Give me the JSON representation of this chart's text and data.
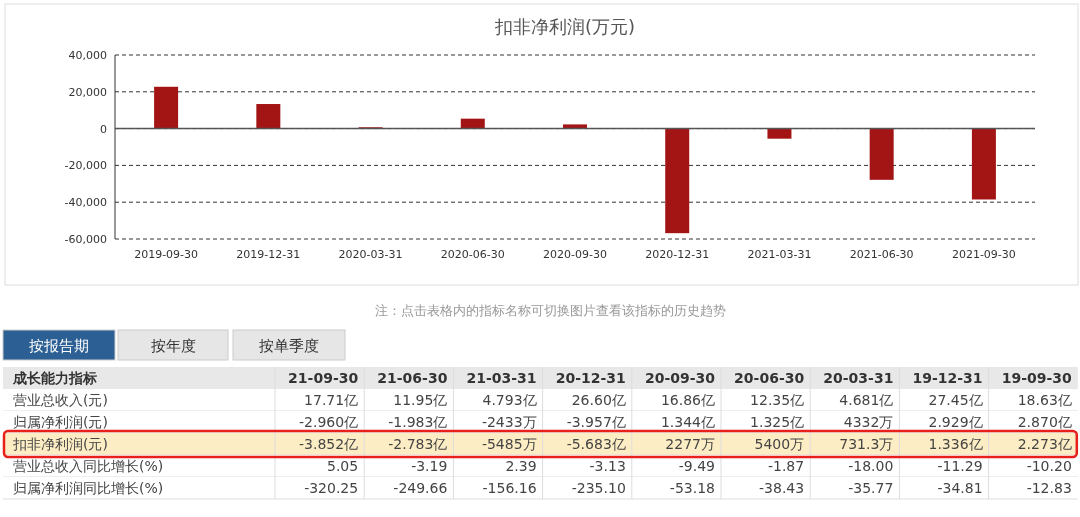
{
  "chart_data": [
    {
      "type": "bar",
      "title": "扣非净利润(万元)",
      "categories": [
        "2019-09-30",
        "2019-12-31",
        "2020-03-31",
        "2020-06-30",
        "2020-09-30",
        "2020-12-31",
        "2021-03-31",
        "2021-06-30",
        "2021-09-30"
      ],
      "values": [
        22730,
        13360,
        731.3,
        5400,
        2277,
        -56830,
        -5485,
        -27830,
        -38520
      ],
      "color": "#a31515",
      "ylim": [
        -60000,
        40000
      ],
      "yticks": [
        {
          "value": -60000,
          "label": "-60,000"
        },
        {
          "value": -40000,
          "label": "-40,000"
        },
        {
          "value": -20000,
          "label": "-20,000"
        },
        0,
        {
          "value": 20000,
          "label": "20,000"
        },
        {
          "value": 40000,
          "label": "40,000"
        }
      ],
      "grid": "y",
      "annotations": [
        "注：点击表格内的指标名称可切换图片查看该指标的历史趋势"
      ]
    },
    {
      "type": "other",
      "categories": [
        "成长能力指标",
        "21-09-30",
        "21-06-30",
        "21-03-31",
        "20-12-31",
        "20-09-30",
        "20-06-30",
        "20-03-31",
        "19-12-31",
        "19-09-30"
      ],
      "y_categories": [
        "营业总收入(元)",
        "归属净利润(元)",
        "扣非净利润(元)",
        "营业总收入同比增长(%)",
        "归属净利润同比增长(%)"
      ],
      "cell_labels": [
        [
          "17.71亿",
          "11.95亿",
          "4.793亿",
          "26.60亿",
          "16.86亿",
          "12.35亿",
          "4.681亿",
          "27.45亿",
          "18.63亿"
        ],
        [
          "-2.960亿",
          "-1.983亿",
          "-2433万",
          "-3.957亿",
          "1.344亿",
          "1.325亿",
          "4332万",
          "2.929亿",
          "2.870亿"
        ],
        [
          "-3.852亿",
          "-2.783亿",
          "-5485万",
          "-5.683亿",
          "2277万",
          "5400万",
          "731.3万",
          "1.336亿",
          "2.273亿"
        ],
        [
          "5.05",
          "-3.19",
          "2.39",
          "-3.13",
          "-9.49",
          "-1.87",
          "-18.00",
          "-11.29",
          "-10.20"
        ],
        [
          "-320.25",
          "-249.66",
          "-156.16",
          "-235.10",
          "-53.18",
          "-38.43",
          "-35.77",
          "-34.81",
          "-12.83"
        ]
      ],
      "annotations": [
        "按报告期",
        "按年度",
        "按单季度"
      ]
    }
  ]
}
